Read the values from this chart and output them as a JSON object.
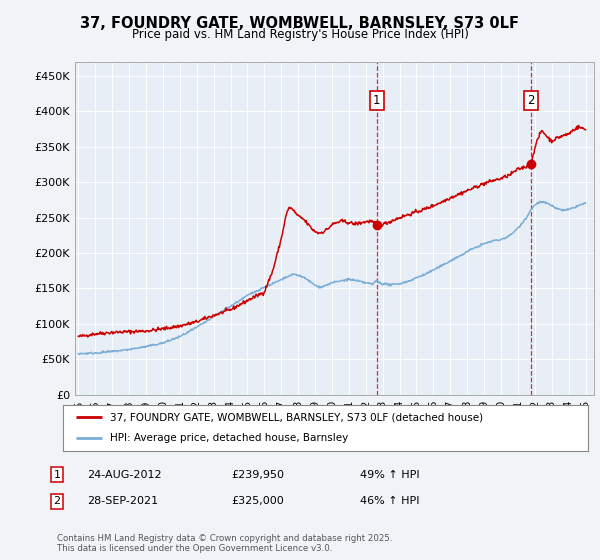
{
  "title": "37, FOUNDRY GATE, WOMBWELL, BARNSLEY, S73 0LF",
  "subtitle": "Price paid vs. HM Land Registry's House Price Index (HPI)",
  "ylabel_ticks": [
    "£0",
    "£50K",
    "£100K",
    "£150K",
    "£200K",
    "£250K",
    "£300K",
    "£350K",
    "£400K",
    "£450K"
  ],
  "ytick_values": [
    0,
    50000,
    100000,
    150000,
    200000,
    250000,
    300000,
    350000,
    400000,
    450000
  ],
  "ylim": [
    0,
    470000
  ],
  "xlim_start": 1994.8,
  "xlim_end": 2025.5,
  "bg_color": "#f0f4f8",
  "plot_bg_color": "#e8eef6",
  "red_color": "#cc0000",
  "blue_color": "#7aaed6",
  "grid_color": "#ffffff",
  "ann1_x": 2012.65,
  "ann1_y": 239950,
  "ann2_x": 2021.75,
  "ann2_y": 325000,
  "ann1_label": "1",
  "ann2_label": "2",
  "ann1_date": "24-AUG-2012",
  "ann1_price": "£239,950",
  "ann1_hpi": "49% ↑ HPI",
  "ann2_date": "28-SEP-2021",
  "ann2_price": "£325,000",
  "ann2_hpi": "46% ↑ HPI",
  "legend_line1": "37, FOUNDRY GATE, WOMBWELL, BARNSLEY, S73 0LF (detached house)",
  "legend_line2": "HPI: Average price, detached house, Barnsley",
  "footnote": "Contains HM Land Registry data © Crown copyright and database right 2025.\nThis data is licensed under the Open Government Licence v3.0.",
  "xtick_years": [
    1995,
    1996,
    1997,
    1998,
    1999,
    2000,
    2001,
    2002,
    2003,
    2004,
    2005,
    2006,
    2007,
    2008,
    2009,
    2010,
    2011,
    2012,
    2013,
    2014,
    2015,
    2016,
    2017,
    2018,
    2019,
    2020,
    2021,
    2022,
    2023,
    2024,
    2025
  ]
}
